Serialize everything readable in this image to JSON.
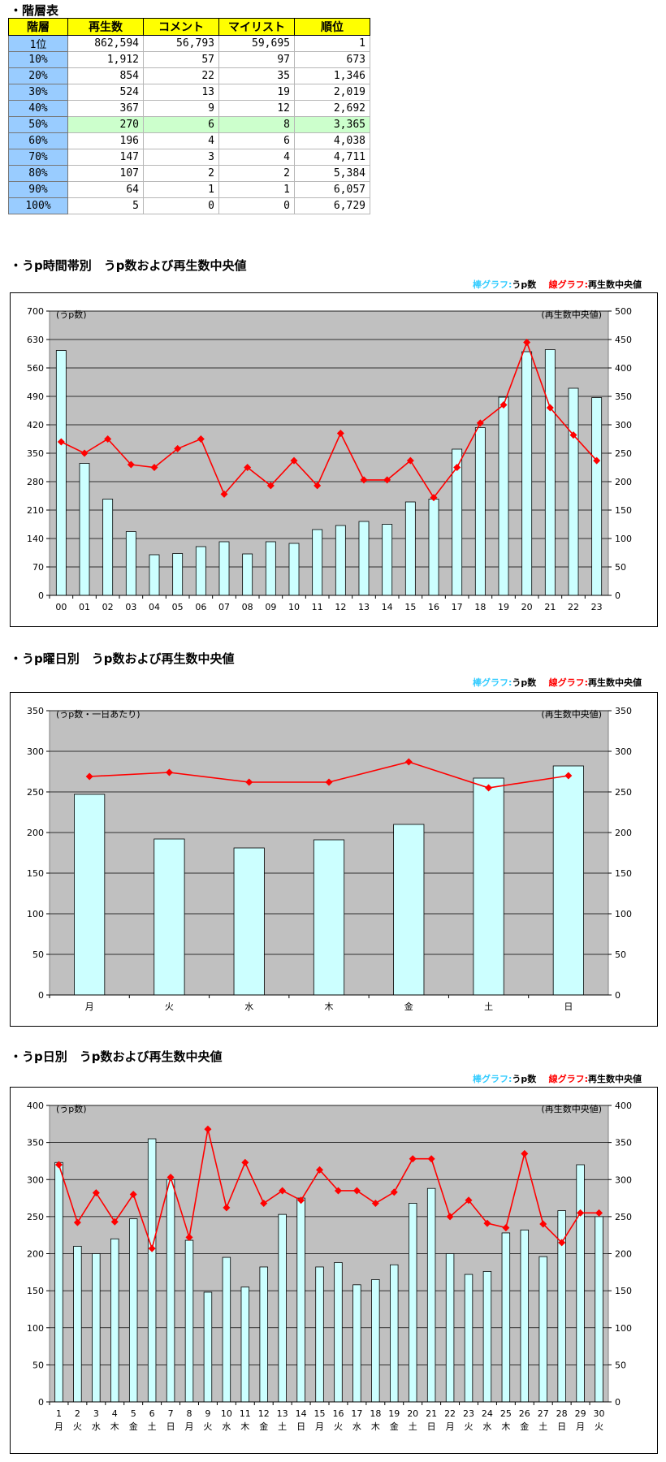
{
  "tier_table": {
    "title": "・階層表",
    "headers": [
      "階層",
      "再生数",
      "コメント",
      "マイリスト",
      "順位"
    ],
    "rows": [
      [
        "1位",
        "862,594",
        "56,793",
        "59,695",
        "1"
      ],
      [
        "10%",
        "1,912",
        "57",
        "97",
        "673"
      ],
      [
        "20%",
        "854",
        "22",
        "35",
        "1,346"
      ],
      [
        "30%",
        "524",
        "13",
        "19",
        "2,019"
      ],
      [
        "40%",
        "367",
        "9",
        "12",
        "2,692"
      ],
      [
        "50%",
        "270",
        "6",
        "8",
        "3,365"
      ],
      [
        "60%",
        "196",
        "4",
        "6",
        "4,038"
      ],
      [
        "70%",
        "147",
        "3",
        "4",
        "4,711"
      ],
      [
        "80%",
        "107",
        "2",
        "2",
        "5,384"
      ],
      [
        "90%",
        "64",
        "1",
        "1",
        "6,057"
      ],
      [
        "100%",
        "5",
        "0",
        "0",
        "6,729"
      ]
    ],
    "highlight_row": 5
  },
  "legend": {
    "bar_label": "棒グラフ:",
    "bar_name": "うp数",
    "line_label": "線グラフ:",
    "line_name": "再生数中央値"
  },
  "colors": {
    "bar_fill": "#ccffff",
    "line": "#ff0000",
    "plot_bg": "#c0c0c0"
  },
  "chart_data": [
    {
      "type": "bar",
      "title": "・うp時間帯別　うp数および再生数中央値",
      "left_axis_label": "(うp数)",
      "right_axis_label": "(再生数中央値)",
      "ylim_left": [
        0,
        700
      ],
      "ylim_right": [
        0,
        500
      ],
      "left_ticks": [
        0,
        70,
        140,
        210,
        280,
        350,
        420,
        490,
        560,
        630,
        700
      ],
      "right_ticks": [
        0,
        50,
        100,
        150,
        200,
        250,
        300,
        350,
        400,
        450,
        500
      ],
      "categories": [
        "00",
        "01",
        "02",
        "03",
        "04",
        "05",
        "06",
        "07",
        "08",
        "09",
        "10",
        "11",
        "12",
        "13",
        "14",
        "15",
        "16",
        "17",
        "18",
        "19",
        "20",
        "21",
        "22",
        "23"
      ],
      "series": [
        {
          "name": "うp数",
          "type": "bar",
          "axis": "left",
          "values": [
            603,
            325,
            237,
            157,
            100,
            103,
            120,
            132,
            102,
            132,
            128,
            162,
            172,
            182,
            175,
            230,
            237,
            360,
            413,
            488,
            600,
            605,
            510,
            487
          ]
        },
        {
          "name": "再生数中央値",
          "type": "line",
          "axis": "right",
          "values": [
            270,
            250,
            275,
            230,
            225,
            258,
            275,
            178,
            225,
            193,
            237,
            193,
            285,
            203,
            203,
            237,
            172,
            225,
            303,
            335,
            445,
            330,
            282,
            237
          ]
        }
      ],
      "grid": true
    },
    {
      "type": "bar",
      "title": "・うp曜日別　うp数および再生数中央値",
      "left_axis_label": "(うp数・一日あたり)",
      "right_axis_label": "(再生数中央値)",
      "ylim_left": [
        0,
        350
      ],
      "ylim_right": [
        0,
        350
      ],
      "left_ticks": [
        0,
        50,
        100,
        150,
        200,
        250,
        300,
        350
      ],
      "right_ticks": [
        0,
        50,
        100,
        150,
        200,
        250,
        300,
        350
      ],
      "categories": [
        "月",
        "火",
        "水",
        "木",
        "金",
        "土",
        "日"
      ],
      "series": [
        {
          "name": "うp数",
          "type": "bar",
          "axis": "left",
          "values": [
            247,
            192,
            181,
            191,
            210,
            267,
            282
          ]
        },
        {
          "name": "再生数中央値",
          "type": "line",
          "axis": "right",
          "values": [
            269,
            274,
            262,
            262,
            287,
            255,
            270
          ]
        }
      ],
      "grid": true
    },
    {
      "type": "bar",
      "title": "・うp日別　うp数および再生数中央値",
      "left_axis_label": "(うp数)",
      "right_axis_label": "(再生数中央値)",
      "ylim_left": [
        0,
        400
      ],
      "ylim_right": [
        0,
        400
      ],
      "left_ticks": [
        0,
        50,
        100,
        150,
        200,
        250,
        300,
        350,
        400
      ],
      "right_ticks": [
        0,
        50,
        100,
        150,
        200,
        250,
        300,
        350,
        400
      ],
      "categories": [
        "1",
        "2",
        "3",
        "4",
        "5",
        "6",
        "7",
        "8",
        "9",
        "10",
        "11",
        "12",
        "13",
        "14",
        "15",
        "16",
        "17",
        "18",
        "19",
        "20",
        "21",
        "22",
        "23",
        "24",
        "25",
        "26",
        "27",
        "28",
        "29",
        "30"
      ],
      "weekday_labels": [
        "月",
        "火",
        "水",
        "木",
        "金",
        "土",
        "日",
        "月",
        "火",
        "水",
        "木",
        "金",
        "土",
        "日",
        "月",
        "火",
        "水",
        "木",
        "金",
        "土",
        "日",
        "月",
        "火",
        "水",
        "木",
        "金",
        "土",
        "日",
        "月",
        "火"
      ],
      "series": [
        {
          "name": "うp数",
          "type": "bar",
          "axis": "left",
          "values": [
            323,
            210,
            200,
            220,
            247,
            355,
            300,
            218,
            148,
            195,
            155,
            182,
            253,
            275,
            182,
            188,
            158,
            165,
            185,
            268,
            288,
            200,
            172,
            176,
            228,
            232,
            196,
            258,
            320,
            250
          ]
        },
        {
          "name": "再生数中央値",
          "type": "line",
          "axis": "right",
          "values": [
            320,
            242,
            282,
            243,
            280,
            207,
            303,
            222,
            368,
            262,
            323,
            268,
            285,
            272,
            313,
            285,
            285,
            268,
            283,
            328,
            328,
            250,
            272,
            241,
            235,
            335,
            240,
            215,
            255,
            255
          ]
        }
      ],
      "grid": true
    }
  ]
}
